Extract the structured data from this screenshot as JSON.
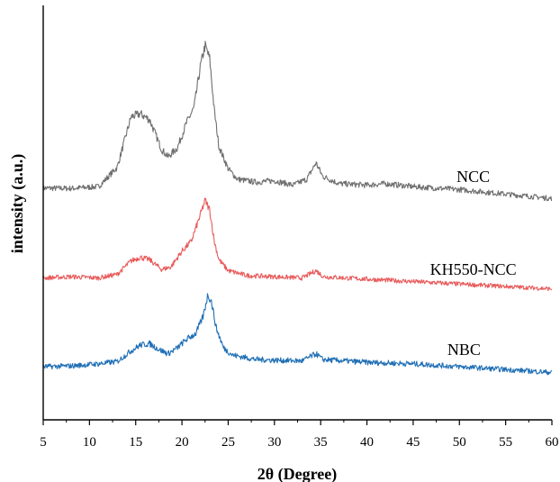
{
  "chart_data": {
    "type": "line",
    "title": "",
    "xlabel": "2θ (Degree)",
    "ylabel": "intensity (a.u.)",
    "xlim": [
      5,
      60
    ],
    "x_ticks": [
      5,
      10,
      15,
      20,
      25,
      30,
      35,
      40,
      45,
      50,
      55,
      60
    ],
    "y_ticks_shown": false,
    "grid": false,
    "legend": "none",
    "series": [
      {
        "name": "NCC",
        "color": "#6f6f6f",
        "label": {
          "x": 51.5,
          "y": 0.85
        },
        "points": [
          [
            5,
            0.8
          ],
          [
            8,
            0.78
          ],
          [
            11,
            0.9
          ],
          [
            13,
            2.2
          ],
          [
            14.5,
            5.6
          ],
          [
            15.5,
            5.8
          ],
          [
            16.5,
            5.4
          ],
          [
            17.8,
            3.4
          ],
          [
            18.5,
            2.9
          ],
          [
            19.5,
            3.5
          ],
          [
            20.5,
            5.2
          ],
          [
            21.3,
            6.2
          ],
          [
            22,
            9.0
          ],
          [
            22.5,
            10.4
          ],
          [
            23,
            9.5
          ],
          [
            23.5,
            6.0
          ],
          [
            24,
            3.6
          ],
          [
            25,
            2.1
          ],
          [
            26,
            1.4
          ],
          [
            28,
            1.2
          ],
          [
            30,
            1.3
          ],
          [
            32,
            1.0
          ],
          [
            33.5,
            1.4
          ],
          [
            34.5,
            2.5
          ],
          [
            35.2,
            1.6
          ],
          [
            37,
            1.1
          ],
          [
            40,
            1.0
          ],
          [
            42,
            1.1
          ],
          [
            45,
            0.9
          ],
          [
            50,
            0.7
          ],
          [
            55,
            0.4
          ],
          [
            60,
            0.1
          ]
        ]
      },
      {
        "name": "KH550-NCC",
        "color": "#e85a5a",
        "label": {
          "x": 51.5,
          "y": 0.8
        },
        "points": [
          [
            5,
            1.0
          ],
          [
            8,
            1.1
          ],
          [
            11,
            1.0
          ],
          [
            13,
            1.3
          ],
          [
            14.5,
            2.4
          ],
          [
            15.5,
            2.7
          ],
          [
            16.5,
            2.5
          ],
          [
            17.8,
            1.7
          ],
          [
            18.8,
            1.9
          ],
          [
            20,
            3.2
          ],
          [
            21,
            4.0
          ],
          [
            22,
            6.2
          ],
          [
            22.5,
            7.4
          ],
          [
            23,
            6.6
          ],
          [
            23.5,
            4.0
          ],
          [
            24,
            2.5
          ],
          [
            25,
            1.6
          ],
          [
            27,
            1.2
          ],
          [
            30,
            1.1
          ],
          [
            33,
            1.0
          ],
          [
            34.5,
            1.6
          ],
          [
            35.3,
            1.1
          ],
          [
            40,
            0.9
          ],
          [
            45,
            0.7
          ],
          [
            50,
            0.5
          ],
          [
            55,
            0.3
          ],
          [
            60,
            0.1
          ]
        ]
      },
      {
        "name": "NBC",
        "color": "#1f6fb5",
        "label": {
          "x": 50.5,
          "y": 0.95
        },
        "points": [
          [
            5,
            0.5
          ],
          [
            8,
            0.55
          ],
          [
            11,
            0.7
          ],
          [
            13,
            0.85
          ],
          [
            14.5,
            1.6
          ],
          [
            15.5,
            2.0
          ],
          [
            16.5,
            2.1
          ],
          [
            17.5,
            1.7
          ],
          [
            18.5,
            1.4
          ],
          [
            19.5,
            1.8
          ],
          [
            20.5,
            2.4
          ],
          [
            21.5,
            2.8
          ],
          [
            22.3,
            4.0
          ],
          [
            22.8,
            5.5
          ],
          [
            23.2,
            5.0
          ],
          [
            23.7,
            3.2
          ],
          [
            24.5,
            1.8
          ],
          [
            25.5,
            1.3
          ],
          [
            28,
            1.0
          ],
          [
            30,
            0.95
          ],
          [
            33,
            0.9
          ],
          [
            34.5,
            1.4
          ],
          [
            35.2,
            1.0
          ],
          [
            40,
            0.8
          ],
          [
            45,
            0.7
          ],
          [
            50,
            0.5
          ],
          [
            55,
            0.3
          ],
          [
            60,
            0.1
          ]
        ]
      }
    ]
  }
}
